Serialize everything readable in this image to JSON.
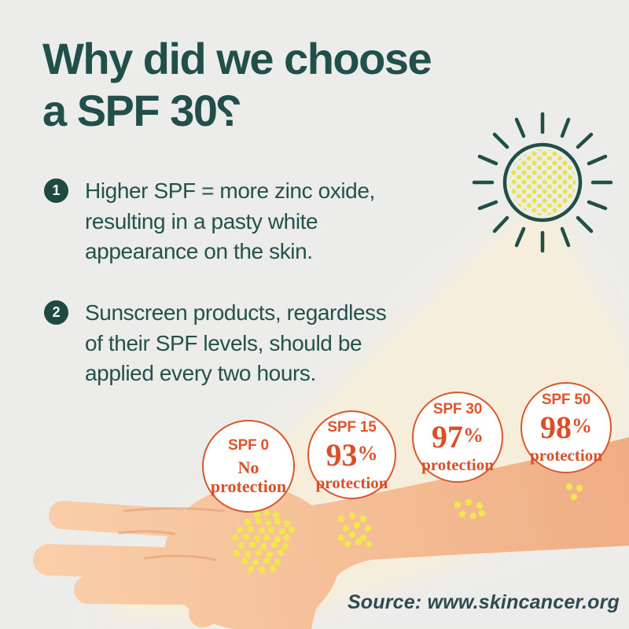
{
  "title": {
    "line1": "Why did we choose",
    "line2": "a SPF 30",
    "qmark": "?"
  },
  "points": [
    {
      "number": "1",
      "lines": [
        "Higher SPF = more zinc oxide,",
        "resulting in a pasty white",
        "appearance on the skin."
      ]
    },
    {
      "number": "2",
      "lines": [
        "Sunscreen products, regardless",
        "of their SPF levels, should be",
        "applied every two hours."
      ]
    }
  ],
  "spf_levels": [
    {
      "label": "SPF 0",
      "value": "",
      "suffix": "",
      "description": "No protection"
    },
    {
      "label": "SPF 15",
      "value": "93",
      "suffix": "%",
      "description": "protection"
    },
    {
      "label": "SPF 30",
      "value": "97",
      "suffix": "%",
      "description": "protection"
    },
    {
      "label": "SPF 50",
      "value": "98",
      "suffix": "%",
      "description": "protection"
    }
  ],
  "source": "Source: www.skincancer.org",
  "colors": {
    "background": "#ECECEA",
    "teal_text": "#21504A",
    "badge_teal": "#1E4A42",
    "accent_orange": "#DB4F26",
    "circle_border_orange": "#D8572D",
    "beam_cream": "#F7EFDA",
    "skin_light": "#F9CEA9",
    "skin_dark": "#EFAD84",
    "uv_dot_yellow": "#F0E74D",
    "source_text": "#2E4A52"
  }
}
